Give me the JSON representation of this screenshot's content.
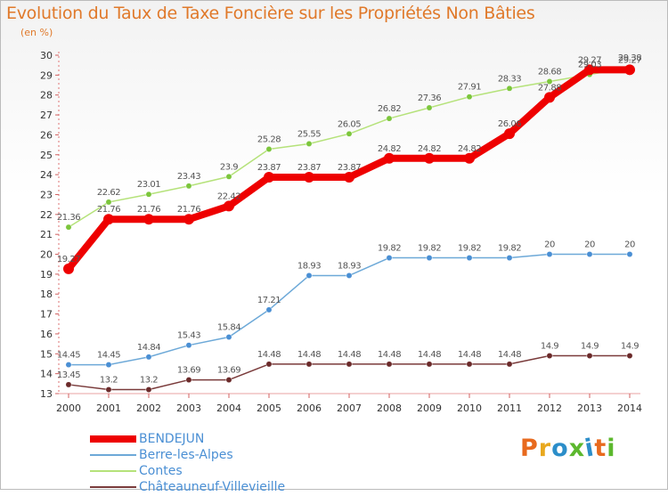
{
  "title": "Evolution du Taux de Taxe Foncière sur les Propriétés Non Bâties",
  "unit": "(en %)",
  "logo": {
    "text": "Proxiti",
    "colors": [
      "#e86a1e",
      "#e8a81e",
      "#2c8ec9",
      "#5cb82e",
      "#2c8ec9",
      "#e86a1e",
      "#5cb82e"
    ]
  },
  "chart_data": {
    "type": "line",
    "title": "Evolution du Taux de Taxe Foncière sur les Propriétés Non Bâties",
    "ylabel": "(en %)",
    "x": [
      2000,
      2001,
      2002,
      2003,
      2004,
      2005,
      2006,
      2007,
      2008,
      2009,
      2010,
      2011,
      2012,
      2013,
      2014
    ],
    "ylim": [
      13,
      30
    ],
    "yticks": [
      13,
      14,
      15,
      16,
      17,
      18,
      19,
      20,
      21,
      22,
      23,
      24,
      25,
      26,
      27,
      28,
      29,
      30
    ],
    "grid": false,
    "legend_position": "bottom-left",
    "series": [
      {
        "name": "BENDEJUN",
        "color": "#ee0000",
        "marker": "#ee0000",
        "width": 8,
        "values": [
          19.27,
          21.76,
          21.76,
          21.76,
          22.42,
          23.87,
          23.87,
          23.87,
          24.82,
          24.82,
          24.82,
          26.06,
          27.88,
          29.27,
          29.27
        ],
        "labels": [
          "19.27",
          "21.76",
          "21.76",
          "21.76",
          "22.42",
          "23.87",
          "23.87",
          "23.87",
          "24.82",
          "24.82",
          "24.82",
          "26.06",
          "27.88",
          "29.27",
          "29.27"
        ]
      },
      {
        "name": "Berre-les-Alpes",
        "color": "#6da9d8",
        "marker": "#4a8fd4",
        "width": 1.5,
        "values": [
          14.45,
          14.45,
          14.84,
          15.43,
          15.84,
          17.21,
          18.93,
          18.93,
          19.82,
          19.82,
          19.82,
          19.82,
          20,
          20,
          20
        ],
        "labels": [
          "14.45",
          "14.45",
          "14.84",
          "15.43",
          "15.84",
          "17.21",
          "18.93",
          "18.93",
          "19.82",
          "19.82",
          "19.82",
          "19.82",
          "20",
          "20",
          "20"
        ]
      },
      {
        "name": "Contes",
        "color": "#b5e27a",
        "marker": "#7cc63c",
        "width": 1.5,
        "values": [
          21.36,
          22.62,
          23.01,
          23.43,
          23.9,
          25.28,
          25.55,
          26.05,
          26.82,
          27.36,
          27.91,
          28.33,
          28.68,
          29.03,
          29.38
        ],
        "labels": [
          "21.36",
          "22.62",
          "23.01",
          "23.43",
          "23.9",
          "25.28",
          "25.55",
          "26.05",
          "26.82",
          "27.36",
          "27.91",
          "28.33",
          "28.68",
          "29.03",
          "29.38"
        ]
      },
      {
        "name": "Châteauneuf-Villevieille",
        "color": "#7a3b3b",
        "marker": "#6b2a2a",
        "width": 1.5,
        "values": [
          13.45,
          13.2,
          13.2,
          13.69,
          13.69,
          14.48,
          14.48,
          14.48,
          14.48,
          14.48,
          14.48,
          14.48,
          14.9,
          14.9,
          14.9
        ],
        "labels": [
          "13.45",
          "13.2",
          "13.2",
          "13.69",
          "13.69",
          "14.48",
          "14.48",
          "14.48",
          "14.48",
          "14.48",
          "14.48",
          "14.48",
          "14.9",
          "14.9",
          "14.9"
        ]
      }
    ]
  }
}
